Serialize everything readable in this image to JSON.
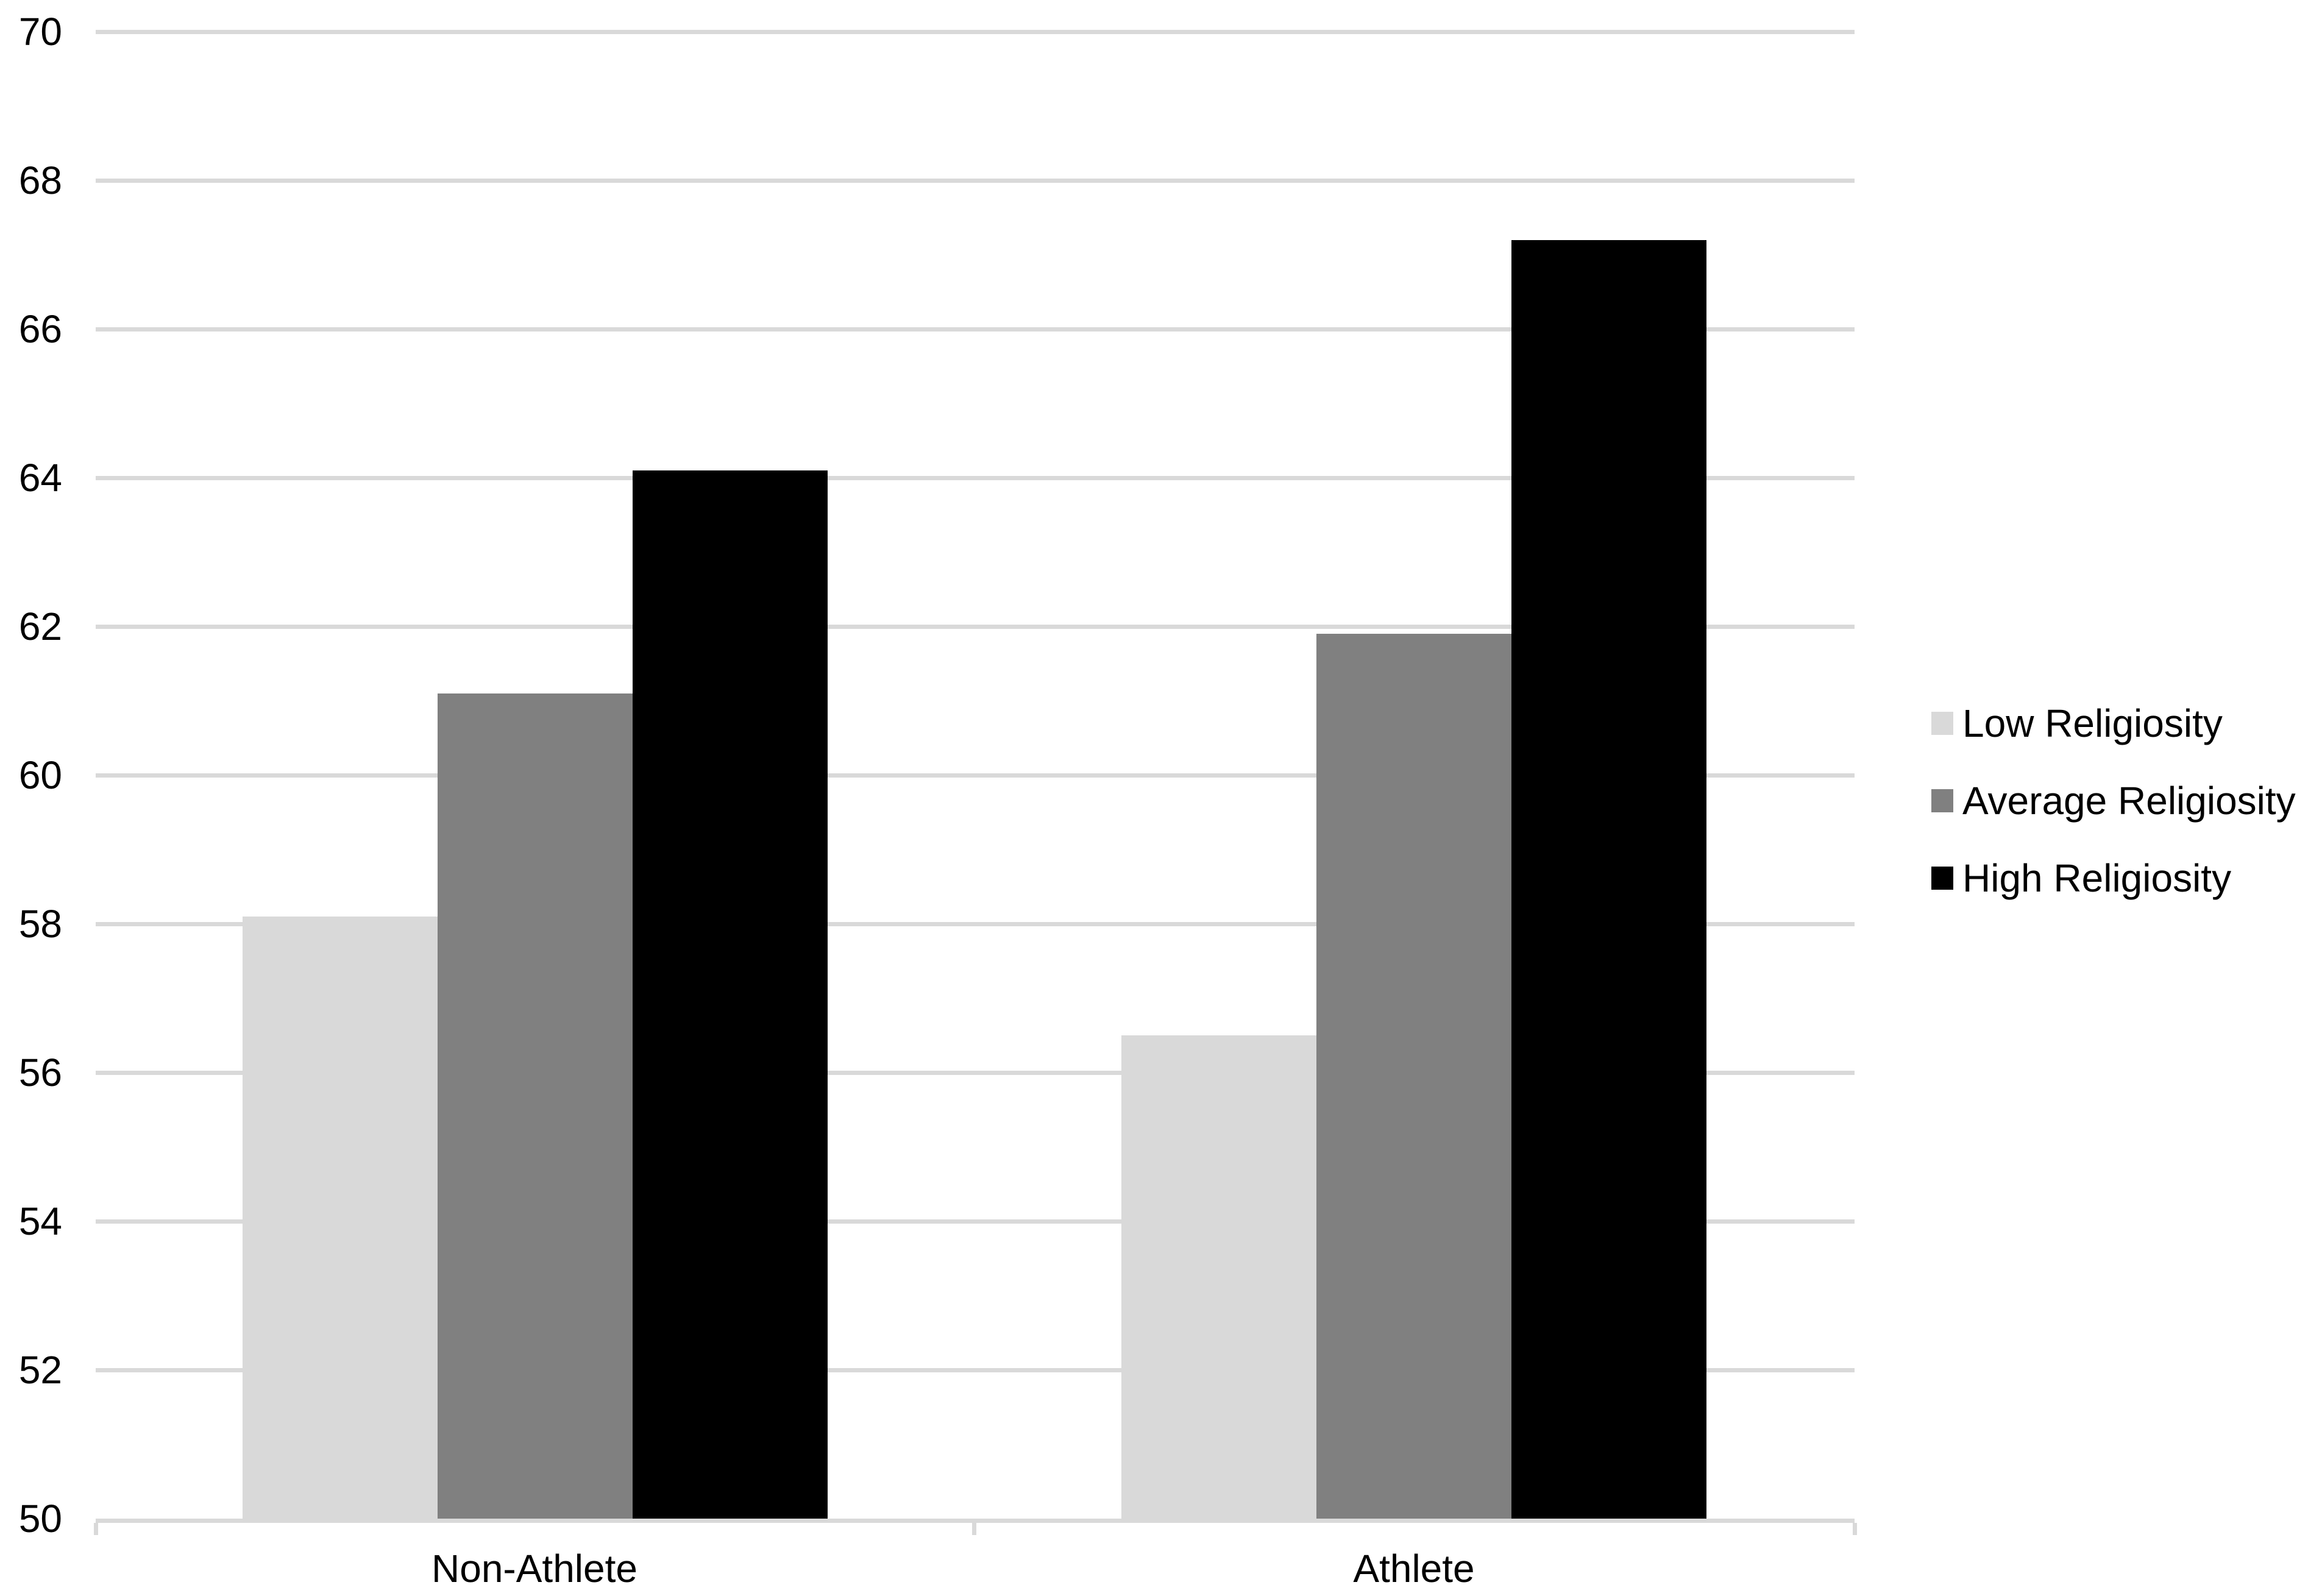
{
  "chart_data": {
    "type": "bar",
    "title": "",
    "xlabel": "",
    "ylabel": "",
    "categories": [
      "Non-Athlete",
      "Athlete"
    ],
    "series": [
      {
        "name": "Low Religiosity",
        "color": "#d9d9d9",
        "values": [
          58.1,
          56.5
        ]
      },
      {
        "name": "Average Religiosity",
        "color": "#808080",
        "values": [
          61.1,
          61.9
        ]
      },
      {
        "name": "High Religiosity",
        "color": "#000000",
        "values": [
          64.1,
          67.2
        ]
      }
    ],
    "y_axis": {
      "min": 50,
      "max": 70,
      "step": 2,
      "ticks": [
        "50",
        "52",
        "54",
        "56",
        "58",
        "60",
        "62",
        "64",
        "66",
        "68",
        "70"
      ]
    },
    "grid": true,
    "legend_position": "right",
    "colors": {
      "background": "#ffffff",
      "gridline": "#d9d9d9",
      "axis_line": "#d9d9d9",
      "text": "#000000"
    }
  }
}
